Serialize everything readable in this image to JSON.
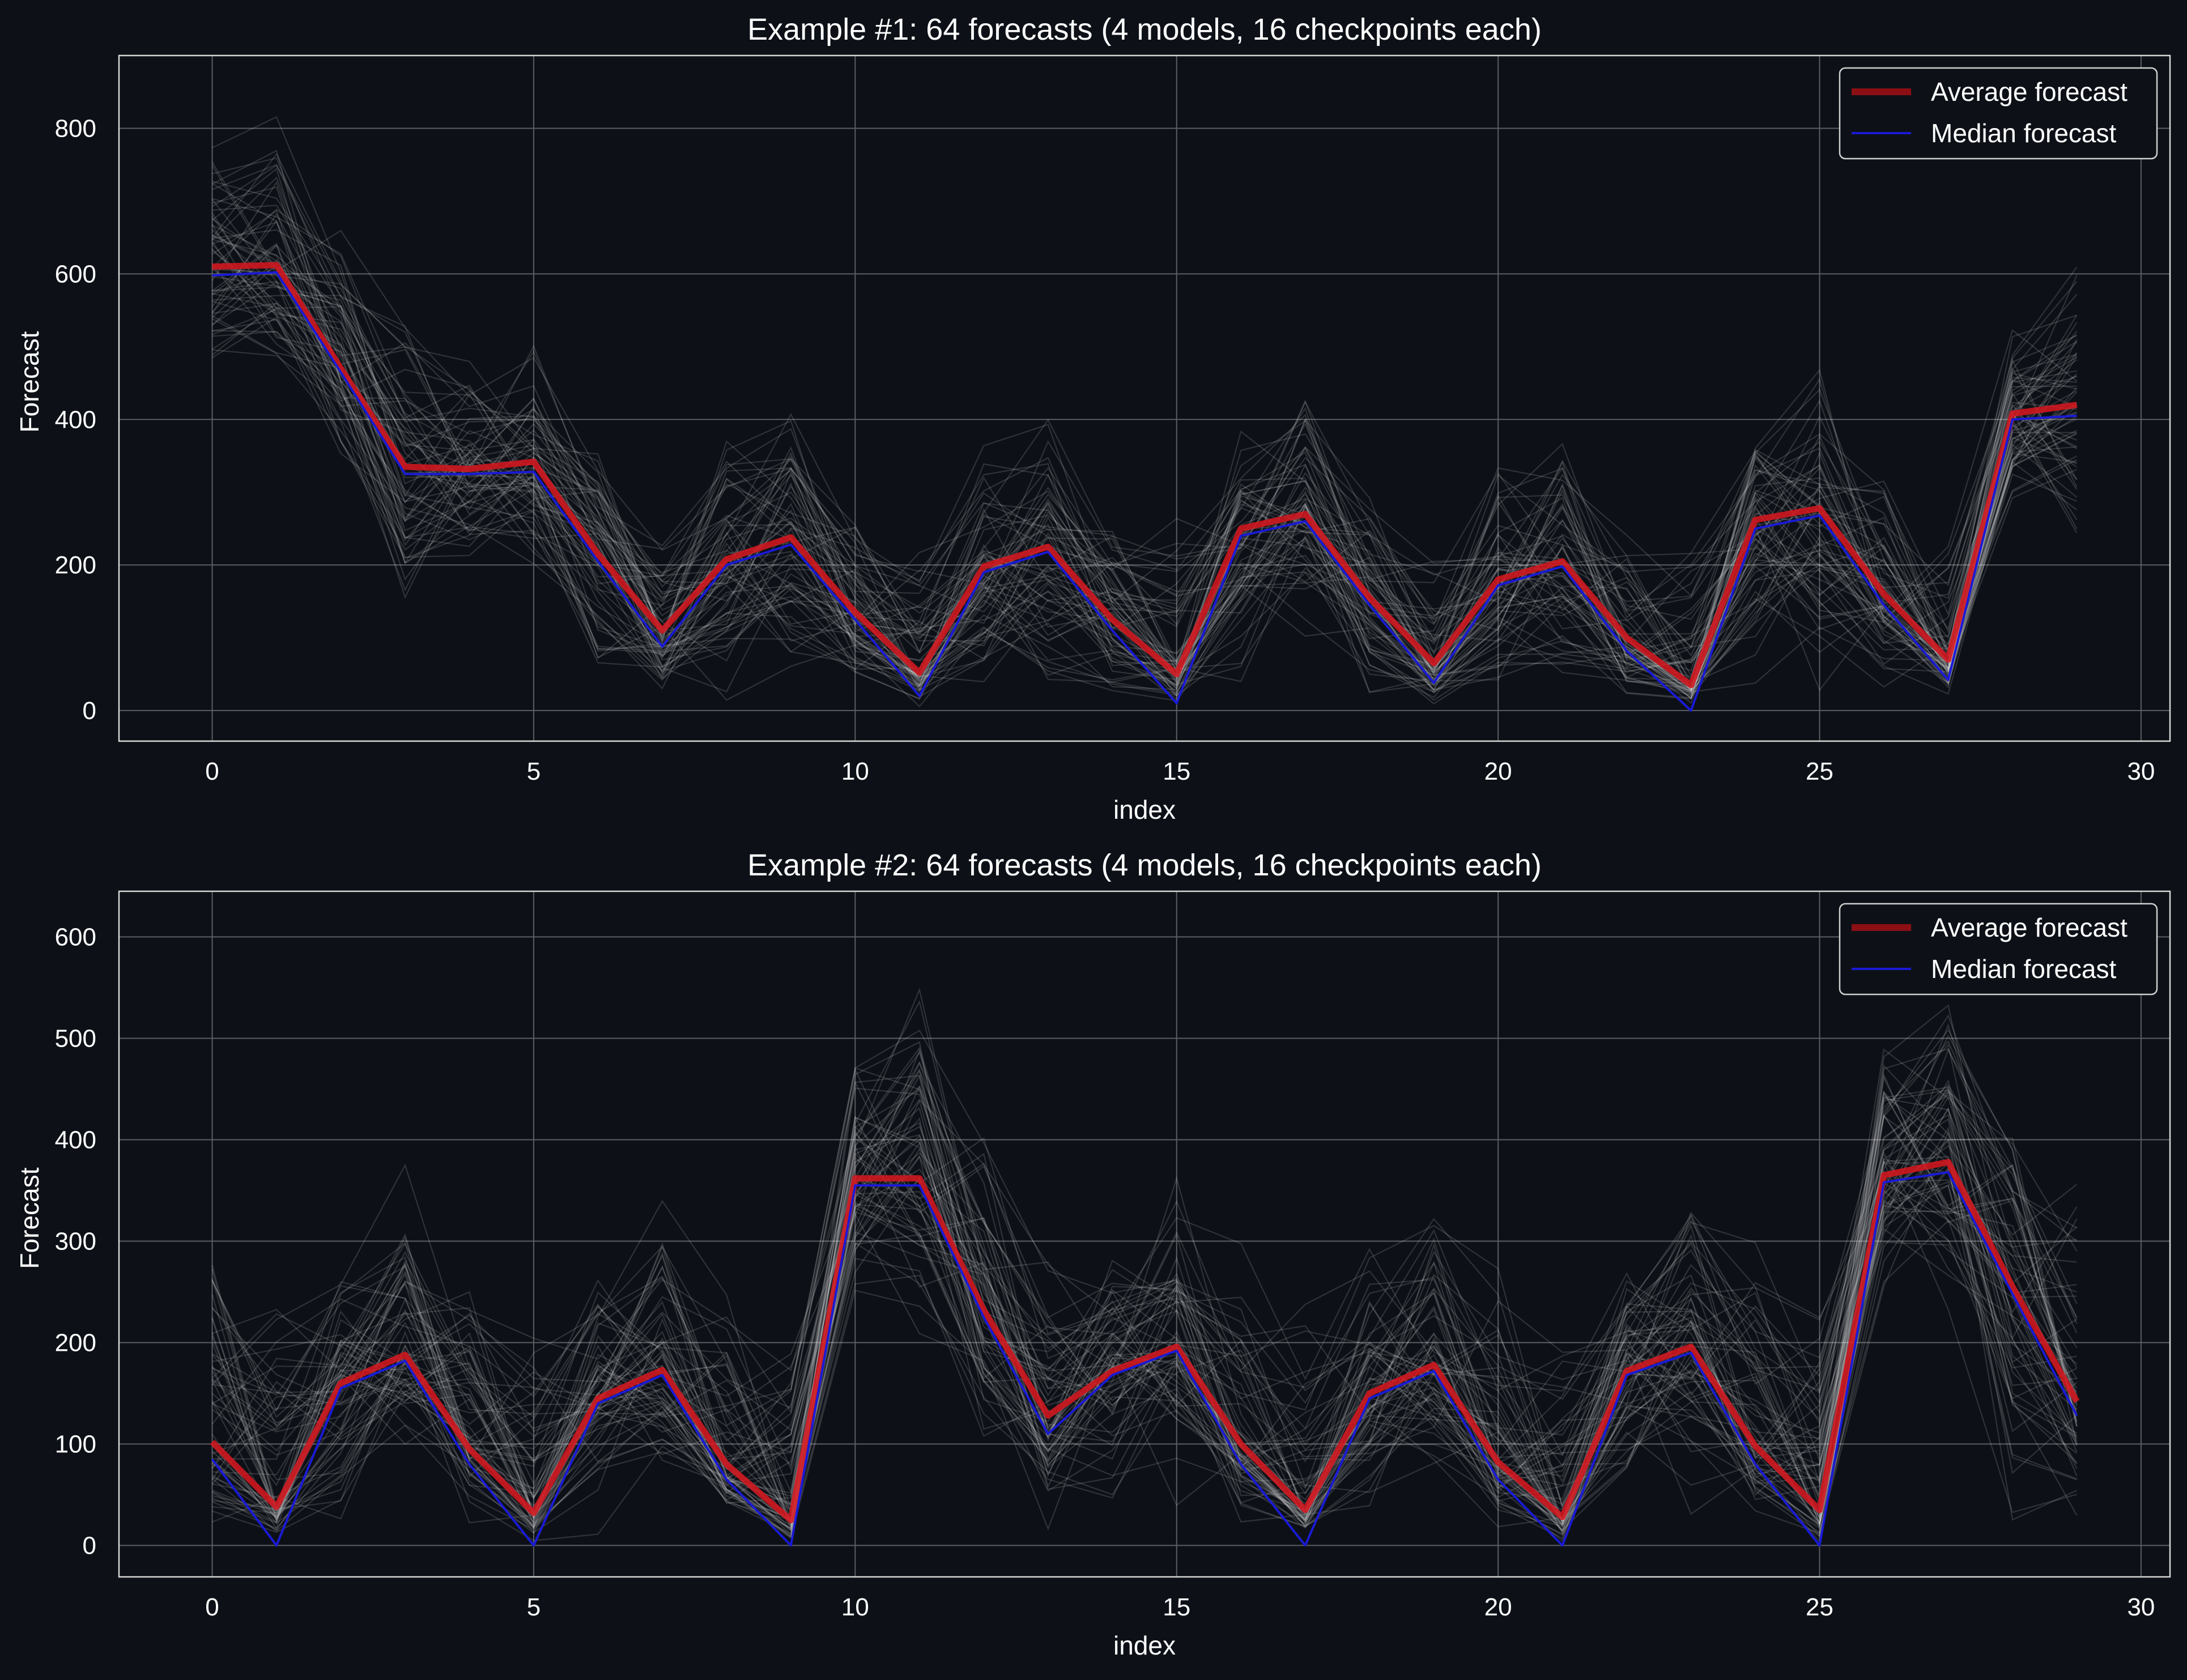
{
  "colors": {
    "background": "#0d1117",
    "text": "#ffffff",
    "grid": "#5a5e63",
    "axes": "#d7d7d7",
    "ensemble": "#ffffff",
    "average": "#d4171f",
    "median": "#1a1ad6"
  },
  "chart_data": [
    {
      "type": "line",
      "title": "Example #1: 64 forecasts (4 models, 16 checkpoints each)",
      "xlabel": "index",
      "ylabel": "Forecast",
      "xlim": [
        -1.45,
        30.45
      ],
      "ylim": [
        -42,
        900
      ],
      "xticks": [
        0,
        5,
        10,
        15,
        20,
        25,
        30
      ],
      "yticks": [
        0,
        200,
        400,
        600,
        800
      ],
      "grid": true,
      "legend_position": "top-right",
      "ensemble_count": 64,
      "x": [
        0,
        1,
        2,
        3,
        4,
        5,
        6,
        7,
        8,
        9,
        10,
        11,
        12,
        13,
        14,
        15,
        16,
        17,
        18,
        19,
        20,
        21,
        22,
        23,
        24,
        25,
        26,
        27,
        28,
        29
      ],
      "ensemble_spread": [
        {
          "low": 460,
          "high": 810
        },
        {
          "low": 450,
          "high": 855
        },
        {
          "low": 300,
          "high": 720
        },
        {
          "low": 130,
          "high": 640
        },
        {
          "low": 170,
          "high": 530
        },
        {
          "low": 160,
          "high": 580
        },
        {
          "low": 0,
          "high": 420
        },
        {
          "low": 0,
          "high": 300
        },
        {
          "low": 0,
          "high": 420
        },
        {
          "low": 20,
          "high": 470
        },
        {
          "low": 0,
          "high": 320
        },
        {
          "low": 0,
          "high": 300
        },
        {
          "low": 0,
          "high": 420
        },
        {
          "low": 0,
          "high": 450
        },
        {
          "low": 0,
          "high": 320
        },
        {
          "low": 0,
          "high": 310
        },
        {
          "low": 0,
          "high": 420
        },
        {
          "low": 50,
          "high": 500
        },
        {
          "low": 0,
          "high": 360
        },
        {
          "low": 0,
          "high": 300
        },
        {
          "low": 0,
          "high": 390
        },
        {
          "low": 0,
          "high": 440
        },
        {
          "low": 0,
          "high": 300
        },
        {
          "low": 0,
          "high": 300
        },
        {
          "low": 0,
          "high": 430
        },
        {
          "low": 0,
          "high": 510
        },
        {
          "low": 0,
          "high": 380
        },
        {
          "low": 0,
          "high": 360
        },
        {
          "low": 260,
          "high": 590
        },
        {
          "low": 180,
          "high": 665
        }
      ],
      "series": [
        {
          "name": "Average forecast",
          "color": "#d4171f",
          "values": [
            610,
            612,
            470,
            335,
            332,
            342,
            215,
            110,
            208,
            238,
            135,
            52,
            198,
            225,
            125,
            50,
            250,
            270,
            155,
            65,
            180,
            205,
            100,
            35,
            262,
            278,
            160,
            70,
            408,
            420
          ]
        },
        {
          "name": "Median forecast",
          "color": "#1a1ad6",
          "values": [
            598,
            602,
            465,
            325,
            325,
            328,
            205,
            88,
            200,
            228,
            125,
            20,
            190,
            218,
            110,
            10,
            240,
            260,
            145,
            38,
            172,
            198,
            82,
            0,
            250,
            268,
            145,
            42,
            400,
            405
          ]
        }
      ]
    },
    {
      "type": "line",
      "title": "Example #2: 64 forecasts (4 models, 16 checkpoints each)",
      "xlabel": "index",
      "ylabel": "Forecast",
      "xlim": [
        -1.45,
        30.45
      ],
      "ylim": [
        -31,
        645
      ],
      "xticks": [
        0,
        5,
        10,
        15,
        20,
        25,
        30
      ],
      "yticks": [
        0,
        100,
        200,
        300,
        400,
        500,
        600
      ],
      "grid": true,
      "legend_position": "top-right",
      "ensemble_count": 64,
      "x": [
        0,
        1,
        2,
        3,
        4,
        5,
        6,
        7,
        8,
        9,
        10,
        11,
        12,
        13,
        14,
        15,
        16,
        17,
        18,
        19,
        20,
        21,
        22,
        23,
        24,
        25,
        26,
        27,
        28,
        29
      ],
      "ensemble_spread": [
        {
          "low": 0,
          "high": 360
        },
        {
          "low": 0,
          "high": 290
        },
        {
          "low": 0,
          "high": 320
        },
        {
          "low": 30,
          "high": 415
        },
        {
          "low": 0,
          "high": 330
        },
        {
          "low": 0,
          "high": 280
        },
        {
          "low": 0,
          "high": 310
        },
        {
          "low": 20,
          "high": 395
        },
        {
          "low": 0,
          "high": 330
        },
        {
          "low": 0,
          "high": 270
        },
        {
          "low": 220,
          "high": 540
        },
        {
          "low": 180,
          "high": 600
        },
        {
          "low": 10,
          "high": 480
        },
        {
          "low": 0,
          "high": 340
        },
        {
          "low": 0,
          "high": 340
        },
        {
          "low": 30,
          "high": 425
        },
        {
          "low": 0,
          "high": 340
        },
        {
          "low": 0,
          "high": 290
        },
        {
          "low": 0,
          "high": 320
        },
        {
          "low": 30,
          "high": 400
        },
        {
          "low": 0,
          "high": 330
        },
        {
          "low": 0,
          "high": 270
        },
        {
          "low": 0,
          "high": 330
        },
        {
          "low": 20,
          "high": 420
        },
        {
          "low": 0,
          "high": 340
        },
        {
          "low": 0,
          "high": 300
        },
        {
          "low": 240,
          "high": 560
        },
        {
          "low": 200,
          "high": 600
        },
        {
          "low": 0,
          "high": 480
        },
        {
          "low": 0,
          "high": 445
        }
      ],
      "series": [
        {
          "name": "Average forecast",
          "color": "#d4171f",
          "values": [
            102,
            38,
            160,
            188,
            95,
            32,
            145,
            173,
            80,
            25,
            362,
            362,
            232,
            128,
            172,
            196,
            100,
            35,
            150,
            178,
            82,
            28,
            172,
            196,
            98,
            35,
            365,
            378,
            255,
            142
          ]
        },
        {
          "name": "Median forecast",
          "color": "#1a1ad6",
          "values": [
            85,
            0,
            155,
            182,
            80,
            0,
            140,
            168,
            65,
            0,
            355,
            355,
            225,
            110,
            168,
            192,
            80,
            0,
            145,
            172,
            65,
            0,
            168,
            190,
            80,
            0,
            358,
            368,
            248,
            128
          ]
        }
      ]
    }
  ]
}
